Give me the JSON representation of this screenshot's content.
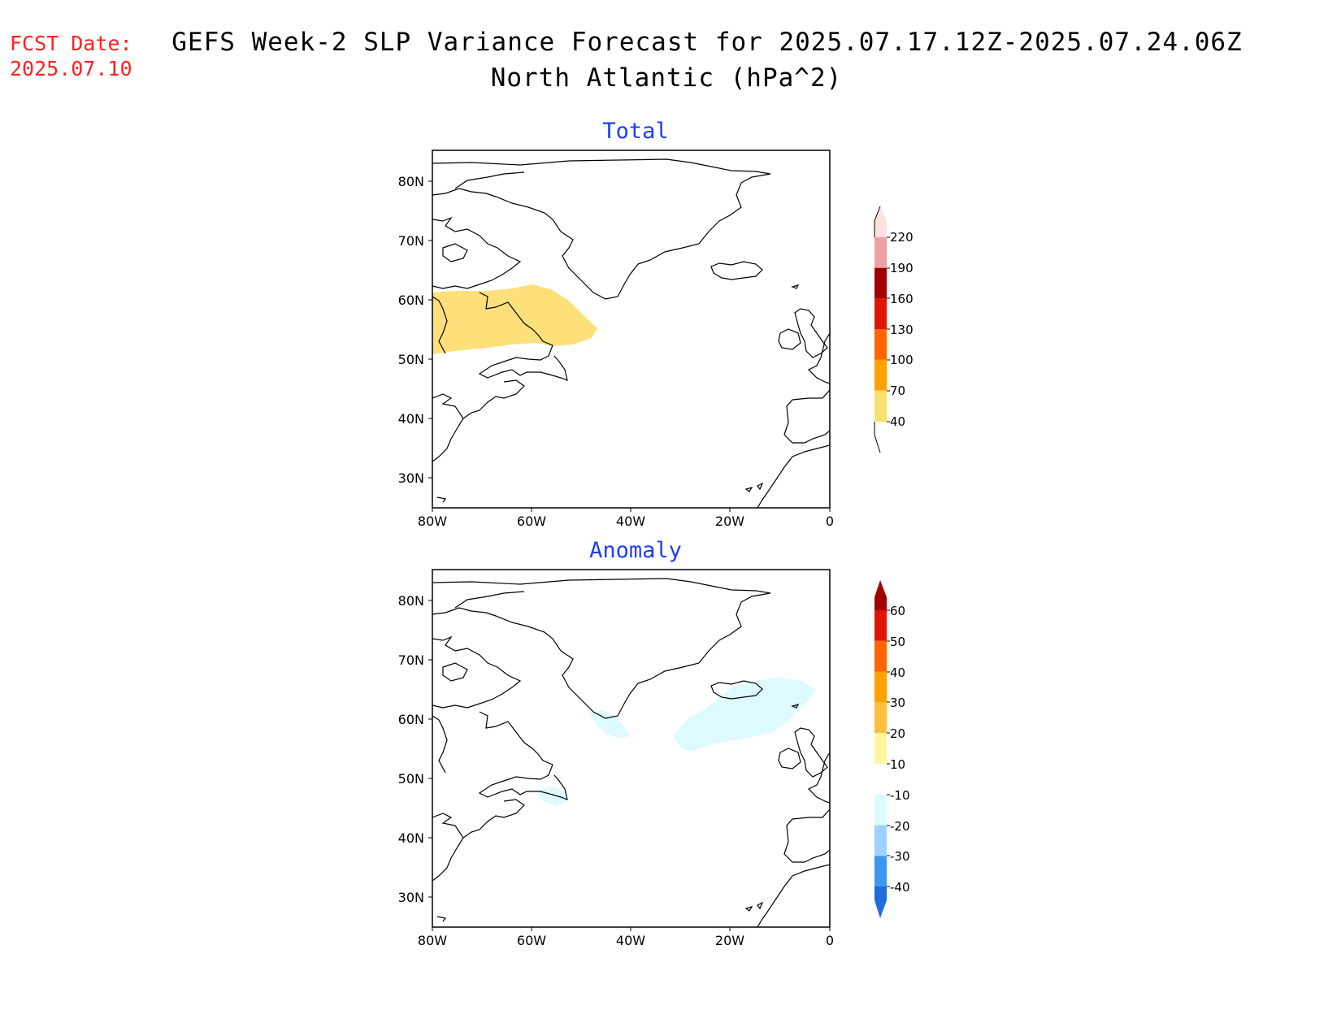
{
  "header": {
    "fcst_label": "FCST Date:",
    "fcst_date": "2025.07.10",
    "title_line1": "GEFS Week-2 SLP Variance Forecast for 2025.07.17.12Z-2025.07.24.06Z",
    "title_line2": "North Atlantic (hPa^2)"
  },
  "map": {
    "lat_ticks": [
      "80N",
      "70N",
      "60N",
      "50N",
      "40N",
      "30N"
    ],
    "lon_ticks": [
      "80W",
      "60W",
      "40W",
      "20W",
      "0"
    ],
    "extent": {
      "lon": [
        -80,
        0
      ],
      "lat": [
        25,
        85
      ]
    }
  },
  "panels": [
    {
      "title": "Total",
      "colorbar": {
        "labels": [
          "220",
          "190",
          "160",
          "130",
          "100",
          "70",
          "40"
        ],
        "colors": [
          "#ffe0e0",
          "#f0a0a0",
          "#a00000",
          "#e01400",
          "#ff6400",
          "#ffa000",
          "#fee070"
        ]
      },
      "shaded_regions": [
        {
          "name": "labrador-sea-variance",
          "category": "40-70",
          "color": "#fee07a"
        }
      ]
    },
    {
      "title": "Anomaly",
      "colorbar": {
        "labels": [
          "60",
          "50",
          "40",
          "30",
          "20",
          "10",
          "-10",
          "-20",
          "-30",
          "-40"
        ],
        "colors": [
          "#a50000",
          "#e01400",
          "#ff6400",
          "#ffa000",
          "#ffbe3c",
          "#fff6a0",
          "#ffffff",
          "#dcfaff",
          "#a0d2ff",
          "#3c96f0",
          "#1e6edc"
        ]
      },
      "shaded_regions": [
        {
          "name": "iceland-anomaly",
          "category": "-10 to -20",
          "color": "#dcfaff"
        },
        {
          "name": "cape-farewell-anomaly",
          "category": "-10 to -20",
          "color": "#dcfaff"
        },
        {
          "name": "newfoundland-anomaly",
          "category": "-10 to -20",
          "color": "#dcfaff"
        }
      ]
    }
  ]
}
